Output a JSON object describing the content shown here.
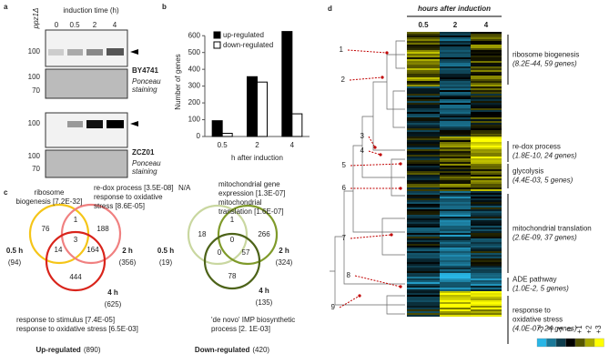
{
  "panel_a": {
    "label": "a",
    "strain_control": "ppz1Δ",
    "time_header": "induction time (h)",
    "lanes": [
      "0",
      "0.5",
      "2",
      "4"
    ],
    "blots": [
      {
        "strain": "BY4741",
        "marker": "100",
        "ponceau_markers": [
          "100",
          "70"
        ],
        "ponceau_label": [
          "Ponceau",
          "staining"
        ]
      },
      {
        "strain": "ZCZ01",
        "marker": "100",
        "ponceau_markers": [
          "100",
          "70"
        ],
        "ponceau_label": [
          "Ponceau",
          "staining"
        ]
      }
    ]
  },
  "chart_data": {
    "type": "bar",
    "panel_label": "b",
    "y_label": "Number of genes",
    "x_label": "h after induction",
    "categories": [
      "0.5",
      "2",
      "4"
    ],
    "series": [
      {
        "name": "up-regulated",
        "color": "#000000",
        "values": [
          94,
          356,
          625
        ]
      },
      {
        "name": "down-regulated",
        "color": "#ffffff",
        "values": [
          19,
          324,
          135
        ]
      }
    ],
    "ylim": [
      0,
      650
    ],
    "yticks": [
      0,
      100,
      200,
      300,
      400,
      500,
      600
    ],
    "grid": false,
    "legend": "top-left"
  },
  "panel_c": {
    "label": "c",
    "up": {
      "title": "Up-regulated",
      "total": "(890)",
      "sets": [
        {
          "name": "0.5 h",
          "count": "(94)"
        },
        {
          "name": "2 h",
          "count": "(356)"
        },
        {
          "name": "4 h",
          "count": "(625)"
        }
      ],
      "regions": [
        76,
        1,
        188,
        14,
        3,
        164,
        444
      ],
      "term_a": [
        "ribosome",
        "biogenesis [7.2E-32]"
      ],
      "term_b": [
        "re-dox process [3.5E-08]",
        "response to oxidative",
        "stress [8.6E-05]"
      ],
      "term_c": [
        "response to stimulus [7.4E-05]",
        "response to oxidative stress [6.5E-03]"
      ]
    },
    "down": {
      "title": "Down-regulated",
      "total": "(420)",
      "sets": [
        {
          "name": "0.5 h",
          "count": "(19)"
        },
        {
          "name": "2 h",
          "count": "(324)"
        },
        {
          "name": "4 h",
          "count": "(135)"
        }
      ],
      "regions": [
        18,
        1,
        266,
        0,
        0,
        57,
        78
      ],
      "term_a": [
        "N/A"
      ],
      "term_b": [
        "mitochondrial gene",
        "expression [1.3E-07]",
        "mitochondrial",
        "translation [1.6E-07]"
      ],
      "term_c": [
        "'de novo' IMP biosynthetic",
        "process [2. 1E-03]"
      ]
    }
  },
  "panel_d": {
    "label": "d",
    "header": "hours after induction",
    "columns": [
      "0.5",
      "2",
      "4"
    ],
    "clusters": [
      "1",
      "2",
      "3",
      "4",
      "5",
      "6",
      "7",
      "8",
      "9"
    ],
    "annotations": [
      {
        "term": [
          "ribosome biogenesis"
        ],
        "stats": "(8.2E-44, 59 genes)"
      },
      {
        "term": [
          "re-dox process"
        ],
        "stats": "(1.8E-10, 24 genes)"
      },
      {
        "term": [
          "glycolysis"
        ],
        "stats": "(4.4E-03, 5 genes)"
      },
      {
        "term": [
          "mitochondrial translation"
        ],
        "stats": "(2.6E-09, 37 genes)"
      },
      {
        "term": [
          "ADE pathway"
        ],
        "stats": "(1.0E-2, 5 genes)"
      },
      {
        "term": [
          "response to",
          "oxidative stress"
        ],
        "stats": "(4.0E-07, 24 genes)"
      }
    ],
    "scale": [
      "-3",
      "-2",
      "-1",
      "0",
      "+1",
      "+2",
      "+3"
    ]
  }
}
